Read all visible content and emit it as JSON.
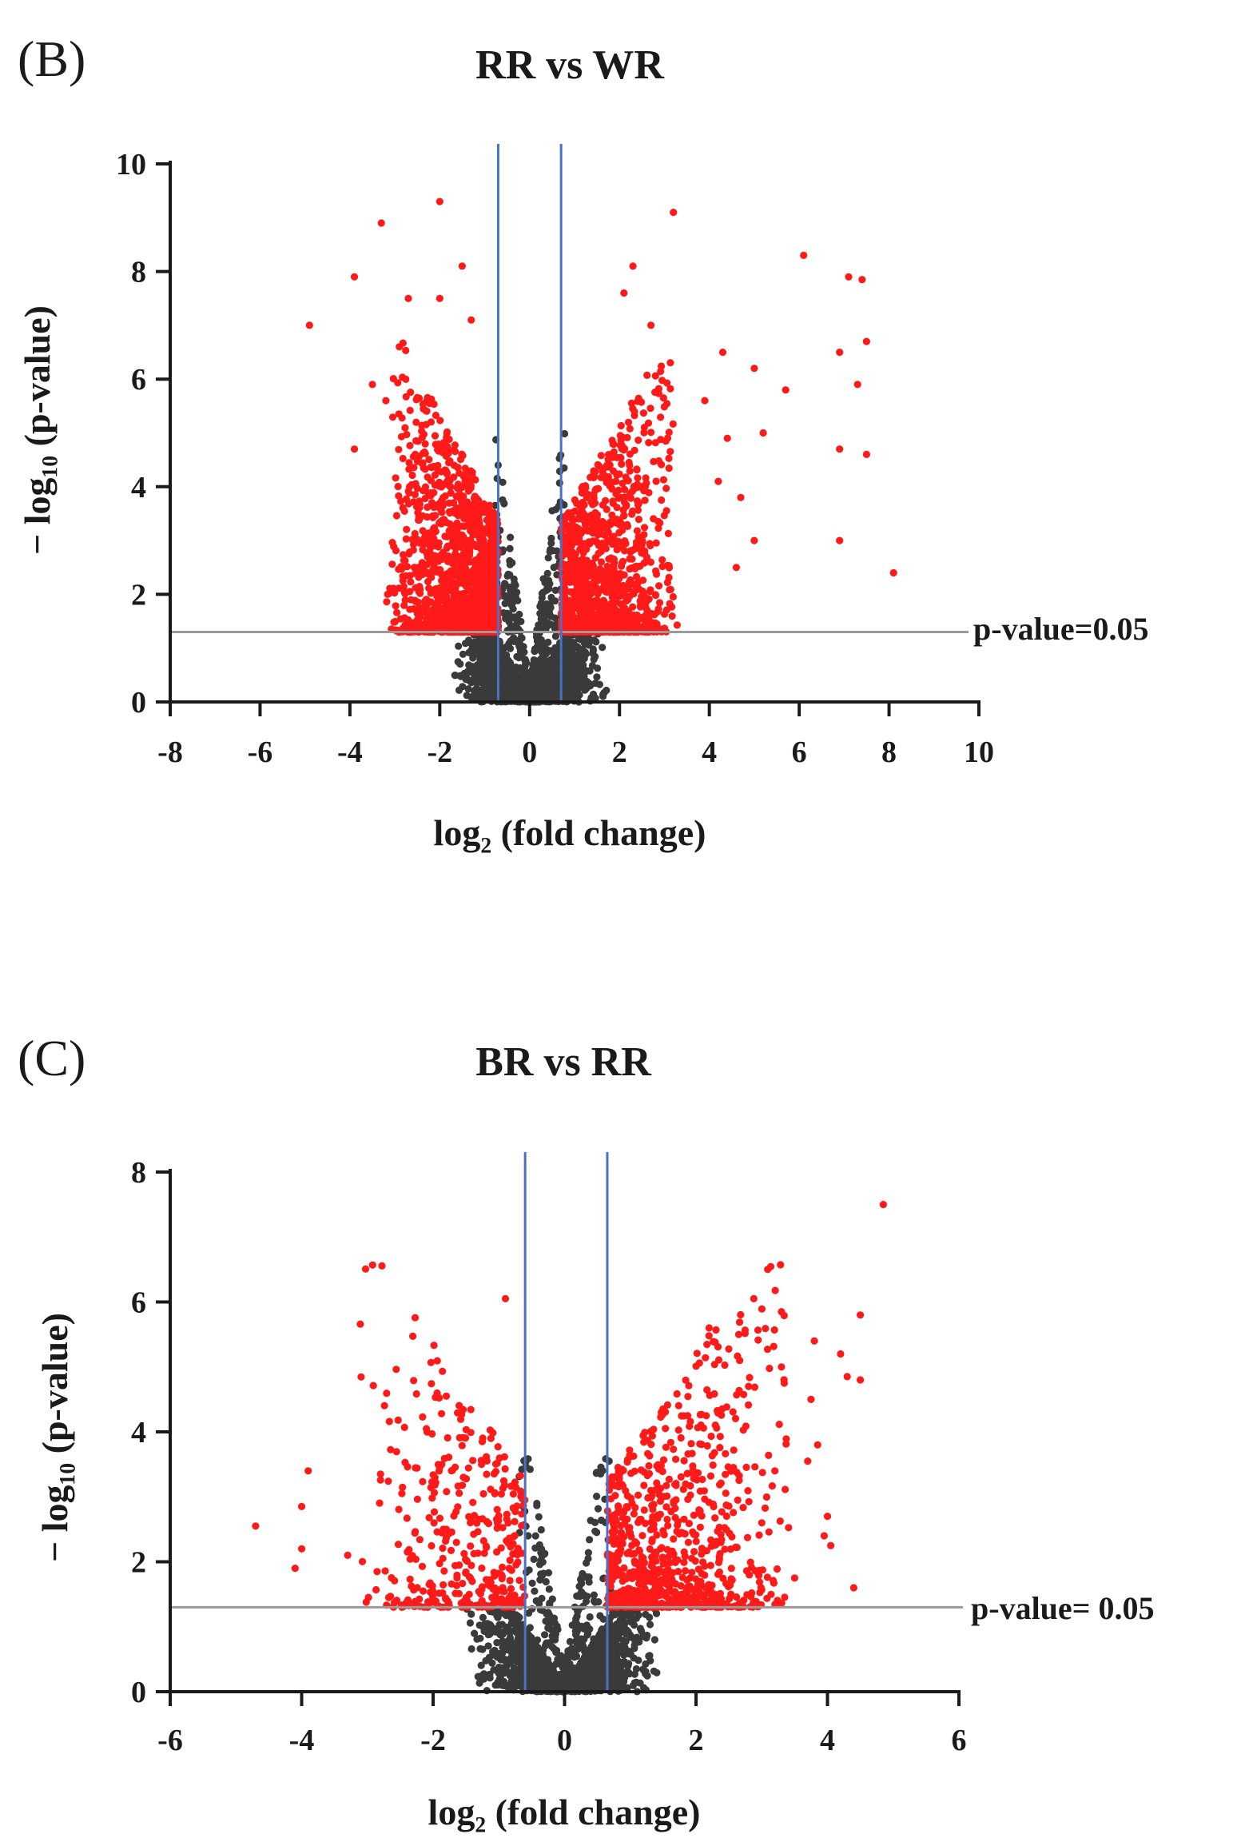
{
  "chart_data": [
    {
      "panel_label": "(B)",
      "type": "scatter",
      "title": "RR vs WR",
      "xlabel": "log₂ (fold change)",
      "ylabel": "− log₁₀ (p-value)",
      "xlim": [
        -8,
        10
      ],
      "ylim": [
        0,
        10
      ],
      "xticks": [
        "-8",
        "-6",
        "-4",
        "-2",
        "0",
        "2",
        "4",
        "6",
        "8",
        "10"
      ],
      "yticks": [
        "0",
        "2",
        "4",
        "6",
        "8",
        "10"
      ],
      "grid": false,
      "colors": {
        "significant": "#ff1a1a",
        "not_significant": "#3a3a3a",
        "fold_change_lines": "#4a72c4",
        "pvalue_line": "#9a9a9a"
      },
      "fold_change_thresholds": [
        -0.7,
        0.7
      ],
      "pvalue_threshold_y": 1.3,
      "pvalue_threshold_label": "p-value=0.05",
      "distribution": {
        "sig_down_points": 1500,
        "sig_down_x_range": [
          -3.2,
          -0.7
        ],
        "sig_down_x_mode": -1.2,
        "sig_up_points": 1200,
        "sig_up_x_range": [
          0.7,
          3.3
        ],
        "sig_up_x_mode": 1.4,
        "nonsig_points": 2500,
        "nonsig_x_spread": 3.5,
        "max_y": 5.0
      },
      "outliers": [
        {
          "x": -2.0,
          "y": 9.3
        },
        {
          "x": -3.3,
          "y": 8.9
        },
        {
          "x": -3.9,
          "y": 7.9
        },
        {
          "x": -1.5,
          "y": 8.1
        },
        {
          "x": -4.9,
          "y": 7.0
        },
        {
          "x": -2.7,
          "y": 7.5
        },
        {
          "x": -2.0,
          "y": 7.5
        },
        {
          "x": -1.3,
          "y": 7.1
        },
        {
          "x": -3.5,
          "y": 5.9
        },
        {
          "x": -3.9,
          "y": 4.7
        },
        {
          "x": -3.2,
          "y": 5.6
        },
        {
          "x": -2.9,
          "y": 6.6
        },
        {
          "x": 3.2,
          "y": 9.1
        },
        {
          "x": 6.1,
          "y": 8.3
        },
        {
          "x": 7.1,
          "y": 7.9
        },
        {
          "x": 7.4,
          "y": 7.85
        },
        {
          "x": 7.5,
          "y": 6.7
        },
        {
          "x": 6.9,
          "y": 6.5
        },
        {
          "x": 7.3,
          "y": 5.9
        },
        {
          "x": 5.7,
          "y": 5.8
        },
        {
          "x": 5.0,
          "y": 6.2
        },
        {
          "x": 4.3,
          "y": 6.5
        },
        {
          "x": 7.5,
          "y": 4.6
        },
        {
          "x": 6.9,
          "y": 4.7
        },
        {
          "x": 6.9,
          "y": 3.0
        },
        {
          "x": 8.1,
          "y": 2.4
        },
        {
          "x": 5.0,
          "y": 3.0
        },
        {
          "x": 4.7,
          "y": 3.8
        },
        {
          "x": 2.3,
          "y": 8.1
        },
        {
          "x": 2.1,
          "y": 7.6
        },
        {
          "x": 2.7,
          "y": 7.0
        },
        {
          "x": 3.9,
          "y": 5.6
        },
        {
          "x": 5.2,
          "y": 5.0
        },
        {
          "x": 4.4,
          "y": 4.9
        },
        {
          "x": 4.6,
          "y": 2.5
        },
        {
          "x": 4.2,
          "y": 4.1
        }
      ]
    },
    {
      "panel_label": "(C)",
      "type": "scatter",
      "title": "BR vs RR",
      "xlabel": "log₂ (fold change)",
      "ylabel": "− log₁₀ (p-value)",
      "xlim": [
        -6,
        6
      ],
      "ylim": [
        0,
        8
      ],
      "xticks": [
        "-6",
        "-4",
        "-2",
        "0",
        "2",
        "4",
        "6"
      ],
      "yticks": [
        "0",
        "2",
        "4",
        "6",
        "8"
      ],
      "grid": false,
      "colors": {
        "significant": "#ff1a1a",
        "not_significant": "#3a3a3a",
        "fold_change_lines": "#4a72c4",
        "pvalue_line": "#9a9a9a"
      },
      "fold_change_thresholds": [
        -0.6,
        0.65
      ],
      "pvalue_threshold_y": 1.3,
      "pvalue_threshold_label": "p-value= 0.05",
      "distribution": {
        "sig_down_points": 380,
        "sig_down_x_range": [
          -3.2,
          -0.6
        ],
        "sig_down_x_mode": -1.4,
        "sig_up_points": 850,
        "sig_up_x_range": [
          0.65,
          3.5
        ],
        "sig_up_x_mode": 1.2,
        "nonsig_points": 2200,
        "nonsig_x_spread": 3.0,
        "max_y": 3.7
      },
      "outliers": [
        {
          "x": 4.85,
          "y": 7.5
        },
        {
          "x": -0.9,
          "y": 6.05
        },
        {
          "x": 3.3,
          "y": 5.85
        },
        {
          "x": 4.5,
          "y": 5.8
        },
        {
          "x": 2.2,
          "y": 5.6
        },
        {
          "x": 2.65,
          "y": 5.5
        },
        {
          "x": 3.8,
          "y": 5.4
        },
        {
          "x": 4.2,
          "y": 5.2
        },
        {
          "x": 3.3,
          "y": 5.0
        },
        {
          "x": 4.3,
          "y": 4.85
        },
        {
          "x": 4.5,
          "y": 4.8
        },
        {
          "x": 2.8,
          "y": 4.7
        },
        {
          "x": 3.75,
          "y": 4.5
        },
        {
          "x": -1.8,
          "y": 4.55
        },
        {
          "x": 3.85,
          "y": 3.8
        },
        {
          "x": 3.7,
          "y": 3.55
        },
        {
          "x": -3.9,
          "y": 3.4
        },
        {
          "x": -1.9,
          "y": 3.45
        },
        {
          "x": -2.8,
          "y": 3.35
        },
        {
          "x": -4.0,
          "y": 2.85
        },
        {
          "x": -4.7,
          "y": 2.55
        },
        {
          "x": -4.0,
          "y": 2.2
        },
        {
          "x": -3.3,
          "y": 2.1
        },
        {
          "x": -4.1,
          "y": 1.9
        },
        {
          "x": 4.0,
          "y": 2.7
        },
        {
          "x": 3.95,
          "y": 2.4
        },
        {
          "x": 4.05,
          "y": 2.25
        },
        {
          "x": 4.4,
          "y": 1.6
        },
        {
          "x": 3.5,
          "y": 1.75
        },
        {
          "x": 3.0,
          "y": 2.6
        },
        {
          "x": 3.2,
          "y": 3.4
        }
      ]
    }
  ]
}
